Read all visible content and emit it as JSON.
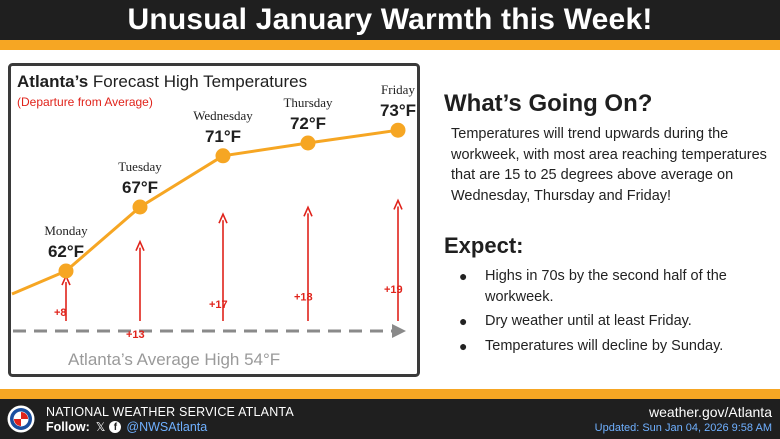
{
  "header": {
    "title": "Unusual January Warmth this Week!"
  },
  "chart_panel": {
    "title_bold": "Atlanta’s",
    "title_rest": " Forecast High Temperatures",
    "subtitle": "(Departure from Average)",
    "average_label": "Atlanta’s Average High 54°F"
  },
  "chart_data": {
    "type": "line",
    "title": "Atlanta’s Forecast High Temperatures",
    "subtitle": "(Departure from Average)",
    "categories": [
      "Monday",
      "Tuesday",
      "Wednesday",
      "Thursday",
      "Friday"
    ],
    "temp_labels": [
      "62°F",
      "67°F",
      "71°F",
      "72°F",
      "73°F"
    ],
    "departure_labels": [
      "+8",
      "+13",
      "+17",
      "+18",
      "+19"
    ],
    "series": [
      {
        "values": [
          62,
          67,
          71,
          72,
          73
        ]
      }
    ],
    "departures": [
      8,
      13,
      17,
      18,
      19
    ],
    "average_high": 54,
    "colors": {
      "line": "#f6a623",
      "arrows": "#e0231b",
      "average": "#888888"
    }
  },
  "side": {
    "title": "What’s Going On?",
    "body": "Temperatures will trend upwards during the workweek, with most area reaching temperatures that are 15 to 25 degrees above average on Wednesday, Thursday and Friday!",
    "expect_title": "Expect:",
    "bullets": [
      "Highs in 70s by the second half of the workweek.",
      "Dry weather until at least Friday.",
      "Temperatures will decline by Sunday."
    ]
  },
  "footer": {
    "office": "NATIONAL WEATHER SERVICE ATLANTA",
    "follow_label": "Follow:",
    "x_icon": "x-logo-icon",
    "fb_icon": "facebook-icon",
    "handle": "@NWSAtlanta",
    "site": "weather.gov/Atlanta",
    "updated": "Updated: Sun Jan 04, 2026 9:58 AM"
  },
  "colors": {
    "header_bg": "#1f1f1f",
    "accent": "#f6a623",
    "link": "#6fb0ff"
  }
}
